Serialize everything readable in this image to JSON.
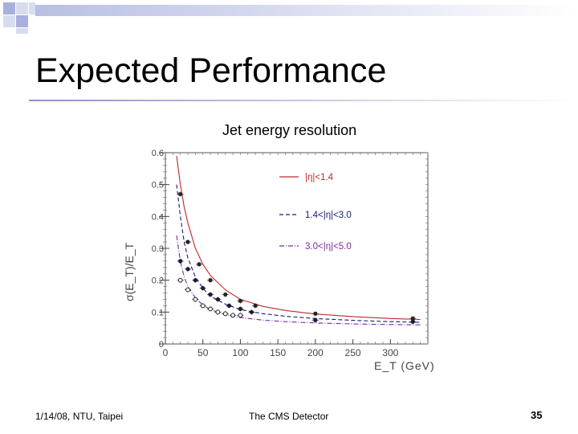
{
  "slide": {
    "title": "Expected Performance",
    "footer_left": "1/14/08, NTU, Taipei",
    "footer_center": "The CMS Detector",
    "page_number": "35"
  },
  "colors": {
    "square_dark": "#a8b0dc",
    "square_light": "#d8dcf0",
    "gradient_start": "#b8bfe3",
    "gradient_end": "#ffffff",
    "series_red": "#c0282d",
    "series_blue": "#1a1a7a",
    "series_purple": "#7a2aa0"
  },
  "chart_data": {
    "type": "line",
    "title": "Jet energy resolution",
    "xlabel": "E_T   (GeV)",
    "ylabel": "σ(E_T)/E_T",
    "xlim": [
      0,
      350
    ],
    "ylim": [
      0,
      0.6
    ],
    "x_ticks": [
      0,
      50,
      100,
      150,
      200,
      250,
      300
    ],
    "y_ticks": [
      0,
      0.1,
      0.2,
      0.3,
      0.4,
      0.5,
      0.6
    ],
    "x_tick_labels": [
      "0",
      "50",
      "100",
      "150",
      "200",
      "250",
      "300"
    ],
    "y_tick_labels": [
      "0",
      "0.1",
      "0.2",
      "0.3",
      "0.4",
      "0.5",
      "0.6"
    ],
    "legend_position": "top-right",
    "series": [
      {
        "name": "|η|<1.4",
        "legend_label": "|η|<1.4",
        "color_key": "series_red",
        "marker": "filled-square",
        "line_style": "solid",
        "points": [
          [
            20,
            0.47
          ],
          [
            30,
            0.32
          ],
          [
            45,
            0.25
          ],
          [
            60,
            0.2
          ],
          [
            80,
            0.155
          ],
          [
            100,
            0.135
          ],
          [
            120,
            0.12
          ],
          [
            200,
            0.095
          ],
          [
            330,
            0.08
          ]
        ],
        "fit": [
          [
            15,
            0.59
          ],
          [
            20,
            0.5
          ],
          [
            25,
            0.43
          ],
          [
            30,
            0.38
          ],
          [
            40,
            0.3
          ],
          [
            50,
            0.25
          ],
          [
            60,
            0.215
          ],
          [
            80,
            0.17
          ],
          [
            100,
            0.14
          ],
          [
            130,
            0.118
          ],
          [
            160,
            0.105
          ],
          [
            200,
            0.094
          ],
          [
            250,
            0.086
          ],
          [
            300,
            0.08
          ],
          [
            340,
            0.077
          ]
        ]
      },
      {
        "name": "1.4<|η|<3.0",
        "legend_label": "1.4<|η|<3.0",
        "color_key": "series_blue",
        "marker": "filled-circle",
        "line_style": "dashed",
        "points": [
          [
            20,
            0.26
          ],
          [
            30,
            0.235
          ],
          [
            40,
            0.2
          ],
          [
            50,
            0.175
          ],
          [
            60,
            0.155
          ],
          [
            70,
            0.14
          ],
          [
            85,
            0.12
          ],
          [
            100,
            0.11
          ],
          [
            115,
            0.1
          ],
          [
            200,
            0.075
          ],
          [
            330,
            0.07
          ]
        ],
        "fit": [
          [
            15,
            0.5
          ],
          [
            20,
            0.4
          ],
          [
            25,
            0.32
          ],
          [
            30,
            0.27
          ],
          [
            40,
            0.21
          ],
          [
            50,
            0.175
          ],
          [
            60,
            0.15
          ],
          [
            80,
            0.125
          ],
          [
            100,
            0.108
          ],
          [
            130,
            0.095
          ],
          [
            160,
            0.087
          ],
          [
            200,
            0.08
          ],
          [
            250,
            0.074
          ],
          [
            300,
            0.07
          ],
          [
            340,
            0.068
          ]
        ]
      },
      {
        "name": "3.0<|η|<5.0",
        "legend_label": "3.0<|η|<5.0",
        "color_key": "series_purple",
        "marker": "open-circle",
        "line_style": "dash-dot",
        "points": [
          [
            20,
            0.2
          ],
          [
            30,
            0.17
          ],
          [
            40,
            0.14
          ],
          [
            50,
            0.12
          ],
          [
            60,
            0.11
          ],
          [
            70,
            0.1
          ],
          [
            80,
            0.095
          ],
          [
            90,
            0.09
          ],
          [
            100,
            0.09
          ]
        ],
        "fit": [
          [
            15,
            0.34
          ],
          [
            20,
            0.26
          ],
          [
            25,
            0.21
          ],
          [
            30,
            0.18
          ],
          [
            40,
            0.145
          ],
          [
            50,
            0.122
          ],
          [
            60,
            0.108
          ],
          [
            80,
            0.092
          ],
          [
            100,
            0.083
          ],
          [
            130,
            0.075
          ],
          [
            160,
            0.07
          ],
          [
            200,
            0.066
          ],
          [
            250,
            0.063
          ],
          [
            300,
            0.061
          ],
          [
            340,
            0.06
          ]
        ]
      }
    ]
  }
}
